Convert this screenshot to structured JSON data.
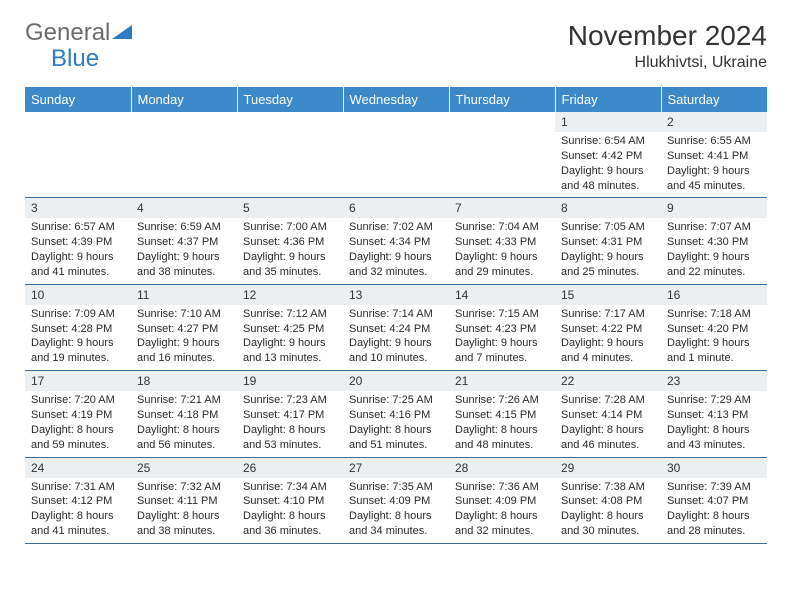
{
  "logo": {
    "line1": "General",
    "line2": "Blue"
  },
  "title": "November 2024",
  "location": "Hlukhivtsi, Ukraine",
  "colors": {
    "header_bg": "#3b89c9",
    "header_text": "#ffffff",
    "daynum_bg": "#eceff1",
    "border": "#3b6ea0",
    "text": "#2a2a2a",
    "logo_gray": "#6b6b6b",
    "logo_blue": "#2f7bc1"
  },
  "weekdays": [
    "Sunday",
    "Monday",
    "Tuesday",
    "Wednesday",
    "Thursday",
    "Friday",
    "Saturday"
  ],
  "weeks": [
    [
      null,
      null,
      null,
      null,
      null,
      {
        "n": "1",
        "sr": "6:54 AM",
        "ss": "4:42 PM",
        "dl": "9 hours and 48 minutes."
      },
      {
        "n": "2",
        "sr": "6:55 AM",
        "ss": "4:41 PM",
        "dl": "9 hours and 45 minutes."
      }
    ],
    [
      {
        "n": "3",
        "sr": "6:57 AM",
        "ss": "4:39 PM",
        "dl": "9 hours and 41 minutes."
      },
      {
        "n": "4",
        "sr": "6:59 AM",
        "ss": "4:37 PM",
        "dl": "9 hours and 38 minutes."
      },
      {
        "n": "5",
        "sr": "7:00 AM",
        "ss": "4:36 PM",
        "dl": "9 hours and 35 minutes."
      },
      {
        "n": "6",
        "sr": "7:02 AM",
        "ss": "4:34 PM",
        "dl": "9 hours and 32 minutes."
      },
      {
        "n": "7",
        "sr": "7:04 AM",
        "ss": "4:33 PM",
        "dl": "9 hours and 29 minutes."
      },
      {
        "n": "8",
        "sr": "7:05 AM",
        "ss": "4:31 PM",
        "dl": "9 hours and 25 minutes."
      },
      {
        "n": "9",
        "sr": "7:07 AM",
        "ss": "4:30 PM",
        "dl": "9 hours and 22 minutes."
      }
    ],
    [
      {
        "n": "10",
        "sr": "7:09 AM",
        "ss": "4:28 PM",
        "dl": "9 hours and 19 minutes."
      },
      {
        "n": "11",
        "sr": "7:10 AM",
        "ss": "4:27 PM",
        "dl": "9 hours and 16 minutes."
      },
      {
        "n": "12",
        "sr": "7:12 AM",
        "ss": "4:25 PM",
        "dl": "9 hours and 13 minutes."
      },
      {
        "n": "13",
        "sr": "7:14 AM",
        "ss": "4:24 PM",
        "dl": "9 hours and 10 minutes."
      },
      {
        "n": "14",
        "sr": "7:15 AM",
        "ss": "4:23 PM",
        "dl": "9 hours and 7 minutes."
      },
      {
        "n": "15",
        "sr": "7:17 AM",
        "ss": "4:22 PM",
        "dl": "9 hours and 4 minutes."
      },
      {
        "n": "16",
        "sr": "7:18 AM",
        "ss": "4:20 PM",
        "dl": "9 hours and 1 minute."
      }
    ],
    [
      {
        "n": "17",
        "sr": "7:20 AM",
        "ss": "4:19 PM",
        "dl": "8 hours and 59 minutes."
      },
      {
        "n": "18",
        "sr": "7:21 AM",
        "ss": "4:18 PM",
        "dl": "8 hours and 56 minutes."
      },
      {
        "n": "19",
        "sr": "7:23 AM",
        "ss": "4:17 PM",
        "dl": "8 hours and 53 minutes."
      },
      {
        "n": "20",
        "sr": "7:25 AM",
        "ss": "4:16 PM",
        "dl": "8 hours and 51 minutes."
      },
      {
        "n": "21",
        "sr": "7:26 AM",
        "ss": "4:15 PM",
        "dl": "8 hours and 48 minutes."
      },
      {
        "n": "22",
        "sr": "7:28 AM",
        "ss": "4:14 PM",
        "dl": "8 hours and 46 minutes."
      },
      {
        "n": "23",
        "sr": "7:29 AM",
        "ss": "4:13 PM",
        "dl": "8 hours and 43 minutes."
      }
    ],
    [
      {
        "n": "24",
        "sr": "7:31 AM",
        "ss": "4:12 PM",
        "dl": "8 hours and 41 minutes."
      },
      {
        "n": "25",
        "sr": "7:32 AM",
        "ss": "4:11 PM",
        "dl": "8 hours and 38 minutes."
      },
      {
        "n": "26",
        "sr": "7:34 AM",
        "ss": "4:10 PM",
        "dl": "8 hours and 36 minutes."
      },
      {
        "n": "27",
        "sr": "7:35 AM",
        "ss": "4:09 PM",
        "dl": "8 hours and 34 minutes."
      },
      {
        "n": "28",
        "sr": "7:36 AM",
        "ss": "4:09 PM",
        "dl": "8 hours and 32 minutes."
      },
      {
        "n": "29",
        "sr": "7:38 AM",
        "ss": "4:08 PM",
        "dl": "8 hours and 30 minutes."
      },
      {
        "n": "30",
        "sr": "7:39 AM",
        "ss": "4:07 PM",
        "dl": "8 hours and 28 minutes."
      }
    ]
  ],
  "labels": {
    "sunrise": "Sunrise: ",
    "sunset": "Sunset: ",
    "daylight": "Daylight: "
  }
}
